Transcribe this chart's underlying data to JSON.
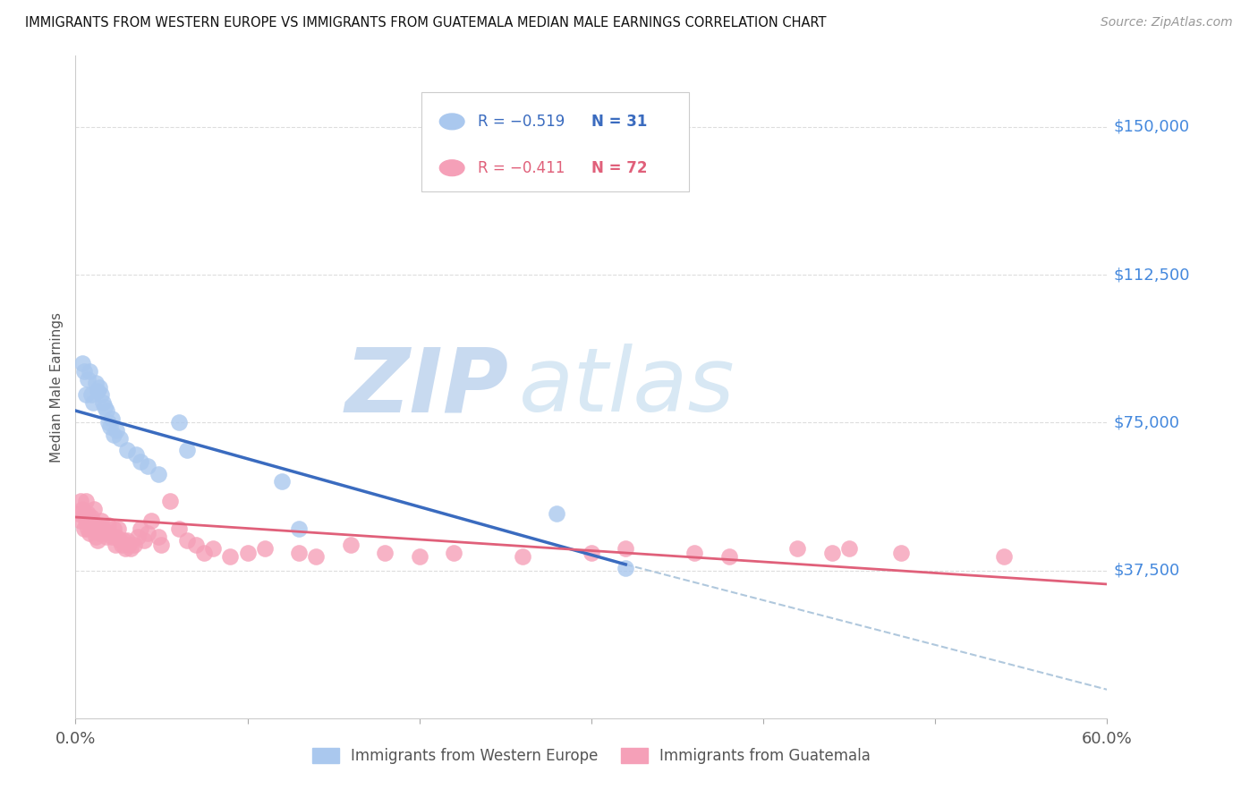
{
  "title": "IMMIGRANTS FROM WESTERN EUROPE VS IMMIGRANTS FROM GUATEMALA MEDIAN MALE EARNINGS CORRELATION CHART",
  "source": "Source: ZipAtlas.com",
  "ylabel": "Median Male Earnings",
  "ytick_labels": [
    "$150,000",
    "$112,500",
    "$75,000",
    "$37,500"
  ],
  "ytick_values": [
    150000,
    112500,
    75000,
    37500
  ],
  "xlim": [
    0.0,
    0.6
  ],
  "ylim": [
    0,
    168000
  ],
  "legend_blue_r": "R = −0.519",
  "legend_blue_n": "N = 31",
  "legend_pink_r": "R = −0.411",
  "legend_pink_n": "N = 72",
  "legend_blue_label": "Immigrants from Western Europe",
  "legend_pink_label": "Immigrants from Guatemala",
  "blue_color": "#aac8ee",
  "blue_line_color": "#3a6bbf",
  "pink_color": "#f5a0b8",
  "pink_line_color": "#e0607a",
  "dashed_line_color": "#b0c8dd",
  "watermark_zip": "ZIP",
  "watermark_atlas": "atlas",
  "blue_scatter_x": [
    0.004,
    0.005,
    0.006,
    0.007,
    0.008,
    0.009,
    0.01,
    0.012,
    0.013,
    0.014,
    0.015,
    0.016,
    0.017,
    0.018,
    0.019,
    0.02,
    0.021,
    0.022,
    0.024,
    0.026,
    0.03,
    0.035,
    0.038,
    0.042,
    0.048,
    0.06,
    0.065,
    0.12,
    0.13,
    0.28,
    0.32
  ],
  "blue_scatter_y": [
    90000,
    88000,
    82000,
    86000,
    88000,
    82000,
    80000,
    85000,
    83000,
    84000,
    82000,
    80000,
    79000,
    78000,
    75000,
    74000,
    76000,
    72000,
    73000,
    71000,
    68000,
    67000,
    65000,
    64000,
    62000,
    75000,
    68000,
    60000,
    48000,
    52000,
    38000
  ],
  "pink_scatter_x": [
    0.002,
    0.003,
    0.003,
    0.004,
    0.005,
    0.005,
    0.006,
    0.006,
    0.007,
    0.007,
    0.008,
    0.008,
    0.009,
    0.009,
    0.01,
    0.011,
    0.012,
    0.012,
    0.013,
    0.013,
    0.014,
    0.015,
    0.016,
    0.017,
    0.018,
    0.019,
    0.02,
    0.021,
    0.022,
    0.023,
    0.024,
    0.025,
    0.026,
    0.027,
    0.028,
    0.029,
    0.03,
    0.031,
    0.032,
    0.034,
    0.036,
    0.038,
    0.04,
    0.042,
    0.044,
    0.048,
    0.05,
    0.055,
    0.06,
    0.065,
    0.07,
    0.075,
    0.08,
    0.09,
    0.1,
    0.11,
    0.13,
    0.14,
    0.16,
    0.18,
    0.2,
    0.22,
    0.26,
    0.3,
    0.32,
    0.36,
    0.38,
    0.42,
    0.44,
    0.45,
    0.48,
    0.54
  ],
  "pink_scatter_y": [
    52000,
    55000,
    50000,
    53000,
    52000,
    48000,
    55000,
    50000,
    52000,
    48000,
    50000,
    47000,
    51000,
    48000,
    49000,
    53000,
    49000,
    46000,
    48000,
    45000,
    47000,
    50000,
    48000,
    47000,
    46000,
    49000,
    47000,
    46000,
    48000,
    44000,
    46000,
    48000,
    45000,
    44000,
    45000,
    43000,
    45000,
    44000,
    43000,
    44000,
    46000,
    48000,
    45000,
    47000,
    50000,
    46000,
    44000,
    55000,
    48000,
    45000,
    44000,
    42000,
    43000,
    41000,
    42000,
    43000,
    42000,
    41000,
    44000,
    42000,
    41000,
    42000,
    41000,
    42000,
    43000,
    42000,
    41000,
    43000,
    42000,
    43000,
    42000,
    41000
  ],
  "blue_line_x": [
    0.0,
    0.32
  ],
  "blue_line_y": [
    78000,
    39000
  ],
  "pink_line_x": [
    0.0,
    0.6
  ],
  "pink_line_y": [
    51000,
    34000
  ],
  "dashed_line_x": [
    0.32,
    0.62
  ],
  "dashed_line_y": [
    39000,
    5000
  ]
}
